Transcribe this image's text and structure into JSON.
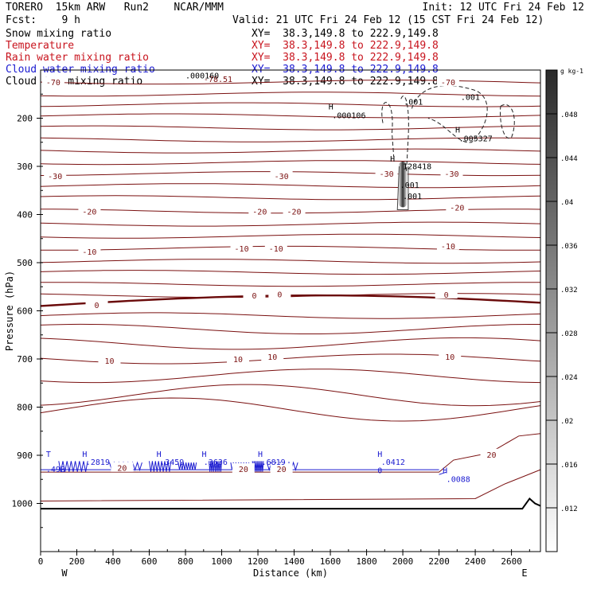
{
  "header": {
    "line1_left": "TORERO  15km ARW   Run2    NCAR/MMM",
    "line1_right": "Init: 12 UTC Fri 24 Feb 12",
    "line2_left": "Fcst:    9 h",
    "line2_right": "Valid: 21 UTC Fri 24 Feb 12 (15 CST Fri 24 Feb 12)"
  },
  "fields": [
    {
      "name": "Snow mixing ratio",
      "color": "#000000",
      "xsec": "XY=  38.3,149.8 to 222.9,149.8"
    },
    {
      "name": "Temperature",
      "color": "#c8141e",
      "xsec": "XY=  38.3,149.8 to 222.9,149.8"
    },
    {
      "name": "Rain water mixing ratio",
      "color": "#c8141e",
      "xsec": "XY=  38.3,149.8 to 222.9,149.8"
    },
    {
      "name": "Cloud water mixing ratio",
      "color": "#1a1ad0",
      "xsec": "XY=  38.3,149.8 to 222.9,149.8"
    },
    {
      "name": "Cloud ice mixing ratio",
      "color": "#000000",
      "xsec": "XY=  38.3,149.8 to 222.9,149.8"
    }
  ],
  "chart_data": {
    "type": "contour-cross-section",
    "xlabel": "Distance (km)",
    "ylabel": "Pressure (hPa)",
    "xlim": [
      0,
      2760
    ],
    "ylim": [
      1100,
      100
    ],
    "x_ticks": [
      "0",
      "200",
      "400",
      "600",
      "800",
      "1000",
      "1200",
      "1400",
      "1600",
      "1800",
      "2000",
      "2200",
      "2400",
      "2600"
    ],
    "y_ticks": [
      "200",
      "300",
      "400",
      "500",
      "600",
      "700",
      "800",
      "900",
      "1000"
    ],
    "x_end_labels": {
      "left": "W",
      "right": "E"
    },
    "colorbar": {
      "units": "g kg-1",
      "ticks": [
        ".012",
        ".016",
        ".02",
        ".024",
        ".028",
        ".032",
        ".036",
        ".04",
        ".044",
        ".048"
      ]
    },
    "temperature_isotherm_labels": [
      {
        "label": "-78.51",
        "x": 980,
        "p": 118
      },
      {
        "label": "-70",
        "x": 70,
        "p": 125
      },
      {
        "label": "-70",
        "x": 2250,
        "p": 125
      },
      {
        "label": "-30",
        "x": 80,
        "p": 320
      },
      {
        "label": "-30",
        "x": 1330,
        "p": 320
      },
      {
        "label": "-30",
        "x": 1910,
        "p": 315
      },
      {
        "label": "-30",
        "x": 2270,
        "p": 315
      },
      {
        "label": "-20",
        "x": 270,
        "p": 393
      },
      {
        "label": "-20",
        "x": 1210,
        "p": 393
      },
      {
        "label": "-20",
        "x": 1400,
        "p": 393
      },
      {
        "label": "-20",
        "x": 2300,
        "p": 385
      },
      {
        "label": "-10",
        "x": 270,
        "p": 477
      },
      {
        "label": "-10",
        "x": 1110,
        "p": 470
      },
      {
        "label": "-10",
        "x": 1300,
        "p": 470
      },
      {
        "label": "-10",
        "x": 2250,
        "p": 465
      },
      {
        "label": "0",
        "x": 310,
        "p": 588
      },
      {
        "label": "0",
        "x": 1180,
        "p": 568
      },
      {
        "label": "0",
        "x": 1320,
        "p": 565
      },
      {
        "label": "0",
        "x": 2240,
        "p": 566
      },
      {
        "label": "10",
        "x": 380,
        "p": 703
      },
      {
        "label": "10",
        "x": 1090,
        "p": 700
      },
      {
        "label": "10",
        "x": 1280,
        "p": 695
      },
      {
        "label": "10",
        "x": 2260,
        "p": 695
      },
      {
        "label": "20",
        "x": 450,
        "p": 926
      },
      {
        "label": "20",
        "x": 1120,
        "p": 928
      },
      {
        "label": "20",
        "x": 1330,
        "p": 928
      },
      {
        "label": "20",
        "x": 2490,
        "p": 898
      }
    ],
    "annotations": [
      {
        "label": ".000160",
        "x": 800,
        "p": 117
      },
      {
        "label": "H",
        "x": 1590,
        "p": 182
      },
      {
        "label": ".000106",
        "x": 1610,
        "p": 200
      },
      {
        "label": ".001",
        "x": 2005,
        "p": 172
      },
      {
        "label": ".001",
        "x": 2320,
        "p": 162
      },
      {
        "label": "H",
        "x": 2290,
        "p": 230
      },
      {
        "label": ".005327",
        "x": 2310,
        "p": 248
      },
      {
        "label": "H",
        "x": 1930,
        "p": 290
      },
      {
        "label": "128418",
        "x": 2000,
        "p": 306
      },
      {
        "label": ".001",
        "x": 1985,
        "p": 345
      },
      {
        "label": ".001",
        "x": 2000,
        "p": 368
      }
    ],
    "cloud_water_labels": [
      {
        "label": "T",
        "x": 30,
        "p": 903
      },
      {
        "label": "H",
        "x": 230,
        "p": 903
      },
      {
        "label": ".2819",
        "x": 250,
        "p": 920
      },
      {
        "label": "H",
        "x": 640,
        "p": 903
      },
      {
        "label": ".3459",
        "x": 660,
        "p": 920
      },
      {
        "label": "H",
        "x": 890,
        "p": 903
      },
      {
        "label": ".3636",
        "x": 900,
        "p": 920
      },
      {
        "label": "H",
        "x": 1200,
        "p": 903
      },
      {
        "label": ".6819",
        "x": 1220,
        "p": 920
      },
      {
        "label": ".49B",
        "x": 30,
        "p": 935
      },
      {
        "label": "H",
        "x": 1860,
        "p": 903
      },
      {
        "label": ".0412",
        "x": 1880,
        "p": 920
      },
      {
        "label": "0",
        "x": 1860,
        "p": 937
      },
      {
        "label": "H",
        "x": 2220,
        "p": 937
      },
      {
        "label": ".0088",
        "x": 2240,
        "p": 955
      }
    ]
  }
}
